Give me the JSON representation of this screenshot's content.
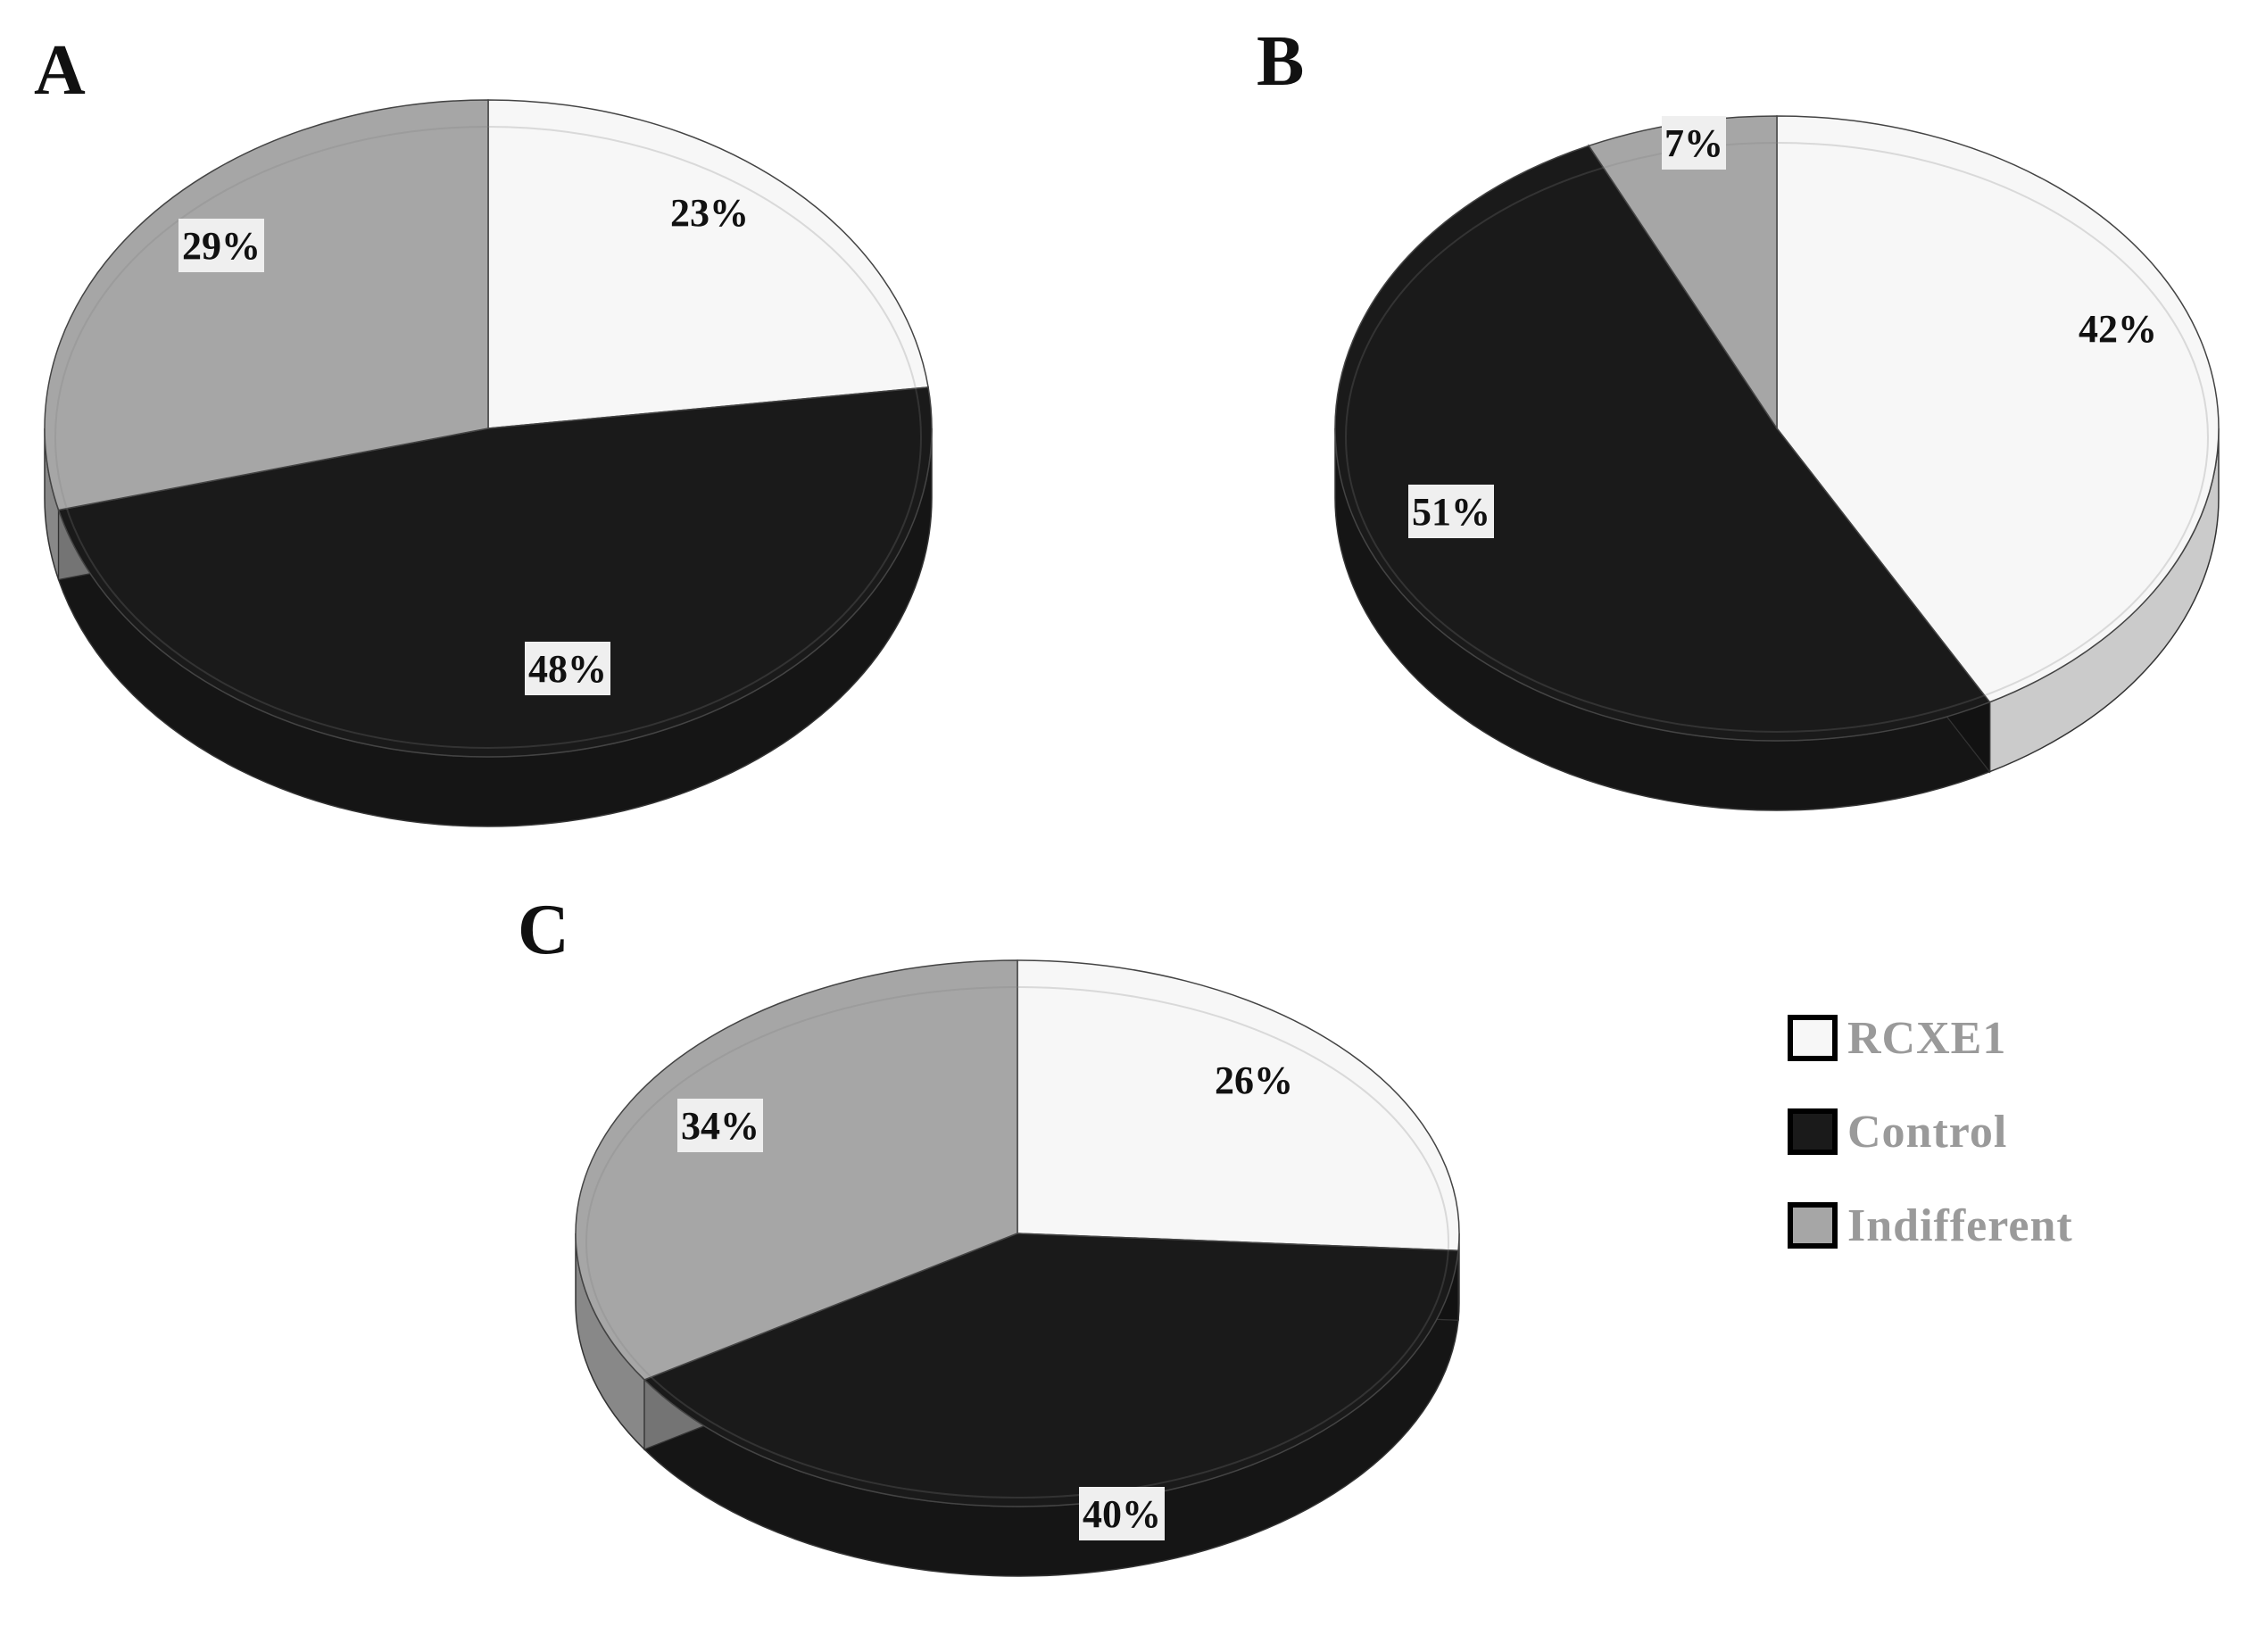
{
  "colors": {
    "RCXE1": "#f7f7f7",
    "Control": "#1a1a1a",
    "Indifferent": "#a6a6a6",
    "label_box": "#efefef",
    "legend_text": "#9a9a9a"
  },
  "legend": {
    "items": [
      {
        "label": "RCXE1",
        "color_key": "RCXE1"
      },
      {
        "label": "Control",
        "color_key": "Control"
      },
      {
        "label": "Indifferent",
        "color_key": "Indifferent"
      }
    ]
  },
  "chart_data": [
    {
      "type": "pie",
      "title": "A",
      "slices": [
        {
          "category": "RCXE1",
          "value": 23,
          "label": "23%"
        },
        {
          "category": "Control",
          "value": 48,
          "label": "48%"
        },
        {
          "category": "Indifferent",
          "value": 29,
          "label": "29%"
        }
      ]
    },
    {
      "type": "pie",
      "title": "B",
      "slices": [
        {
          "category": "RCXE1",
          "value": 42,
          "label": "42%"
        },
        {
          "category": "Control",
          "value": 51,
          "label": "51%"
        },
        {
          "category": "Indifferent",
          "value": 7,
          "label": "7%"
        }
      ]
    },
    {
      "type": "pie",
      "title": "C",
      "slices": [
        {
          "category": "RCXE1",
          "value": 26,
          "label": "26%"
        },
        {
          "category": "Control",
          "value": 40,
          "label": "40%"
        },
        {
          "category": "Indifferent",
          "value": 34,
          "label": "34%"
        }
      ]
    }
  ]
}
